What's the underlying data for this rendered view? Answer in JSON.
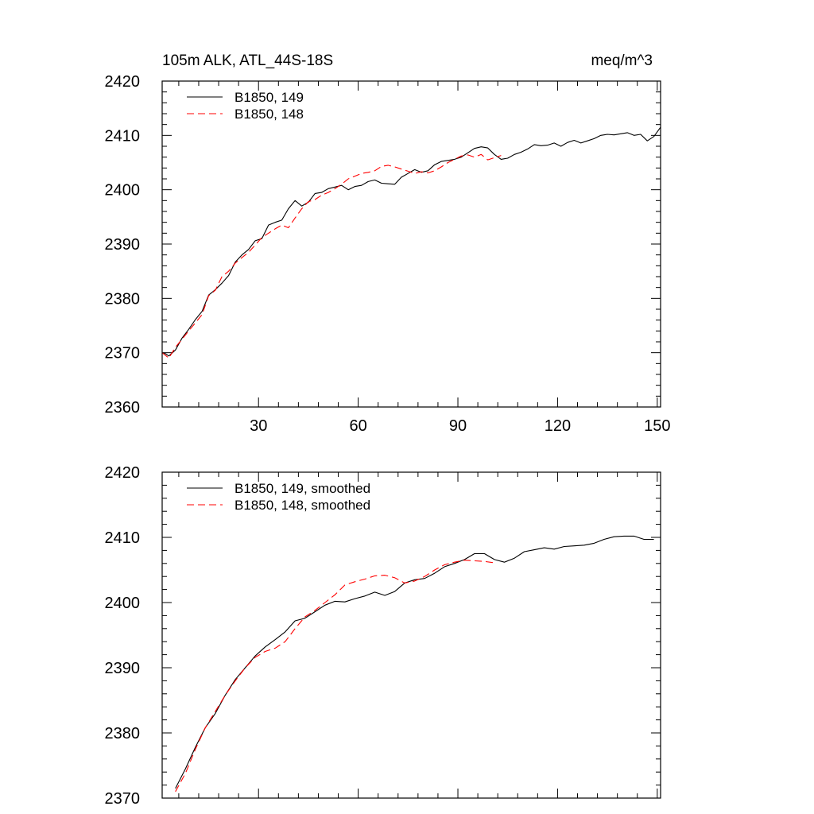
{
  "chart_data": [
    {
      "type": "line",
      "title": "105m ALK, ATL_44S-18S",
      "units": "meq/m^3",
      "xlim": [
        1,
        151
      ],
      "ylim": [
        2360,
        2420
      ],
      "xticks": [
        30,
        60,
        90,
        120,
        150
      ],
      "xtick_labels": [
        "30",
        "60",
        "90",
        "120",
        "150"
      ],
      "yticks": [
        2360,
        2370,
        2380,
        2390,
        2400,
        2410,
        2420
      ],
      "ytick_labels": [
        "2360",
        "2370",
        "2380",
        "2390",
        "2400",
        "2410",
        "2420"
      ],
      "legend_position": "top-left",
      "series": [
        {
          "name": "B1850, 149",
          "color": "#000000",
          "dash": "solid",
          "x": [
            1,
            2,
            3,
            5,
            7,
            9,
            11,
            13,
            15,
            17,
            19,
            21,
            23,
            25,
            27,
            29,
            31,
            33,
            35,
            37,
            39,
            41,
            43,
            45,
            47,
            49,
            51,
            53,
            55,
            57,
            59,
            61,
            63,
            65,
            67,
            69,
            71,
            73,
            75,
            77,
            79,
            81,
            83,
            85,
            87,
            89,
            91,
            93,
            95,
            97,
            99,
            101,
            103,
            105,
            107,
            109,
            111,
            113,
            115,
            117,
            119,
            121,
            123,
            125,
            127,
            129,
            131,
            133,
            135,
            137,
            139,
            141,
            143,
            145,
            147,
            149,
            151
          ],
          "y": [
            2370.0,
            2369.8,
            2369.4,
            2370.5,
            2372.7,
            2374.3,
            2376.1,
            2377.6,
            2380.6,
            2381.6,
            2382.8,
            2384.2,
            2386.7,
            2388.0,
            2389.0,
            2390.6,
            2391.0,
            2393.5,
            2394.0,
            2394.4,
            2396.5,
            2398.0,
            2397.0,
            2397.7,
            2399.3,
            2399.5,
            2400.2,
            2400.5,
            2400.8,
            2400.0,
            2400.6,
            2400.8,
            2401.5,
            2401.8,
            2401.2,
            2401.1,
            2401.0,
            2402.3,
            2403.0,
            2403.7,
            2403.2,
            2403.5,
            2404.6,
            2405.2,
            2405.4,
            2405.6,
            2406.0,
            2406.8,
            2407.6,
            2407.9,
            2407.7,
            2406.5,
            2405.6,
            2405.8,
            2406.5,
            2406.9,
            2407.5,
            2408.3,
            2408.1,
            2408.2,
            2408.6,
            2408.0,
            2408.7,
            2409.1,
            2408.6,
            2409.0,
            2409.4,
            2410.0,
            2410.2,
            2410.1,
            2410.3,
            2410.5,
            2410.0,
            2410.2,
            2409.0,
            2409.8,
            2411.5
          ]
        },
        {
          "name": "B1850, 148",
          "color": "#ff0000",
          "dash": "dashed",
          "x": [
            1,
            3,
            5,
            7,
            9,
            11,
            13,
            15,
            17,
            19,
            21,
            23,
            25,
            27,
            29,
            31,
            33,
            35,
            37,
            39,
            41,
            43,
            45,
            47,
            49,
            51,
            53,
            55,
            57,
            59,
            61,
            63,
            65,
            67,
            69,
            71,
            73,
            75,
            77,
            79,
            81,
            83,
            85,
            87,
            89,
            91,
            93,
            95,
            97,
            99,
            101,
            103
          ],
          "y": [
            2370.0,
            2369.0,
            2371.0,
            2372.5,
            2374.0,
            2375.5,
            2377.0,
            2380.5,
            2381.5,
            2384.0,
            2385.0,
            2386.5,
            2387.5,
            2388.5,
            2389.8,
            2391.2,
            2392.0,
            2392.8,
            2393.5,
            2393.0,
            2394.8,
            2396.5,
            2397.8,
            2398.2,
            2399.0,
            2399.5,
            2400.2,
            2401.0,
            2402.0,
            2402.5,
            2403.0,
            2403.2,
            2403.5,
            2404.3,
            2404.5,
            2404.2,
            2403.8,
            2403.4,
            2403.0,
            2403.3,
            2403.1,
            2403.5,
            2404.2,
            2405.0,
            2405.6,
            2406.2,
            2406.4,
            2406.0,
            2406.5,
            2405.5,
            2405.9,
            2406.3
          ]
        }
      ]
    },
    {
      "type": "line",
      "xlim": [
        1,
        151
      ],
      "ylim": [
        2370,
        2420
      ],
      "xticks": [
        30,
        60,
        90,
        120,
        150
      ],
      "xtick_labels": [],
      "yticks": [
        2370,
        2380,
        2390,
        2400,
        2410,
        2420
      ],
      "ytick_labels": [
        "2370",
        "2380",
        "2390",
        "2400",
        "2410",
        "2420"
      ],
      "legend_position": "top-left",
      "series": [
        {
          "name": "B1850, 149, smoothed",
          "color": "#000000",
          "dash": "solid",
          "x": [
            5,
            8,
            11,
            14,
            17,
            20,
            23,
            26,
            29,
            32,
            35,
            38,
            41,
            44,
            47,
            50,
            53,
            56,
            59,
            62,
            65,
            68,
            71,
            74,
            77,
            80,
            83,
            86,
            89,
            92,
            95,
            98,
            101,
            104,
            107,
            110,
            113,
            116,
            119,
            122,
            125,
            128,
            131,
            134,
            137,
            140,
            143,
            146,
            149
          ],
          "y": [
            2371.5,
            2374.5,
            2377.8,
            2380.8,
            2383.0,
            2385.8,
            2388.2,
            2390.0,
            2391.8,
            2393.2,
            2394.3,
            2395.5,
            2397.2,
            2397.6,
            2398.6,
            2399.6,
            2400.2,
            2400.1,
            2400.6,
            2401.0,
            2401.6,
            2401.1,
            2401.7,
            2403.0,
            2403.5,
            2403.7,
            2404.5,
            2405.5,
            2406.0,
            2406.6,
            2407.5,
            2407.5,
            2406.6,
            2406.2,
            2406.8,
            2407.8,
            2408.1,
            2408.4,
            2408.2,
            2408.6,
            2408.7,
            2408.8,
            2409.1,
            2409.7,
            2410.1,
            2410.2,
            2410.2,
            2409.7,
            2409.7
          ]
        },
        {
          "name": "B1850, 148, smoothed",
          "color": "#ff0000",
          "dash": "dashed",
          "x": [
            5,
            8,
            11,
            14,
            17,
            20,
            23,
            26,
            29,
            32,
            35,
            38,
            41,
            44,
            47,
            50,
            53,
            56,
            59,
            62,
            65,
            68,
            71,
            74,
            77,
            80,
            83,
            86,
            89,
            92,
            95,
            98,
            101
          ],
          "y": [
            2371.0,
            2373.8,
            2377.5,
            2380.8,
            2383.3,
            2385.8,
            2388.0,
            2390.0,
            2391.6,
            2392.5,
            2393.0,
            2394.0,
            2396.0,
            2397.8,
            2398.8,
            2400.0,
            2401.2,
            2402.7,
            2403.2,
            2403.6,
            2404.1,
            2404.2,
            2403.8,
            2403.0,
            2403.3,
            2404.0,
            2405.0,
            2405.8,
            2406.2,
            2406.5,
            2406.4,
            2406.3,
            2406.1
          ]
        }
      ]
    }
  ]
}
